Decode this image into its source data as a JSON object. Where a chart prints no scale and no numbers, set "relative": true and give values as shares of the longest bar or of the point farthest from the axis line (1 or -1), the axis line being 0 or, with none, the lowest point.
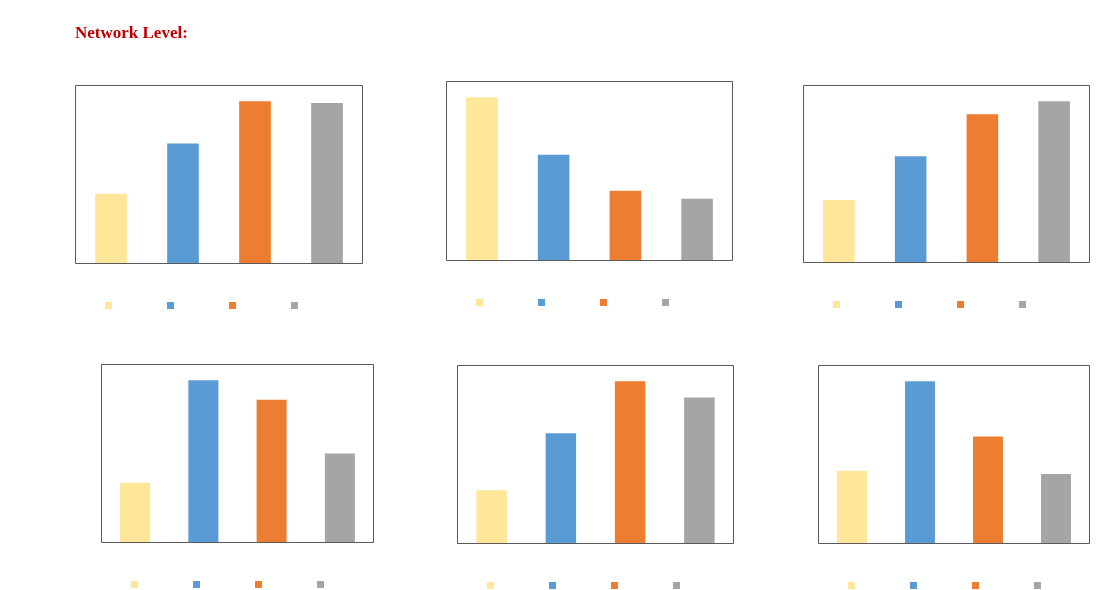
{
  "chart_data": [
    {
      "type": "bar",
      "title": "Network Level:",
      "relative": true,
      "categories": [
        null,
        null,
        null,
        null
      ],
      "values": [
        0.43,
        0.74,
        1,
        0.99
      ],
      "colors": [
        "#ffe699",
        "#5b9bd5",
        "#ed7d31",
        "#a5a5a5"
      ]
    },
    {
      "type": "bar",
      "relative": true,
      "categories": [
        null,
        null,
        null,
        null
      ],
      "values": [
        1,
        0.65,
        0.43,
        0.38
      ],
      "colors": [
        "#ffe699",
        "#5b9bd5",
        "#ed7d31",
        "#a5a5a5"
      ]
    },
    {
      "type": "bar",
      "relative": true,
      "categories": [
        null,
        null,
        null,
        null
      ],
      "values": [
        0.39,
        0.66,
        0.92,
        1
      ],
      "colors": [
        "#ffe699",
        "#5b9bd5",
        "#ed7d31",
        "#a5a5a5"
      ]
    },
    {
      "type": "bar",
      "relative": true,
      "categories": [
        null,
        null,
        null,
        null
      ],
      "values": [
        0.37,
        1,
        0.88,
        0.55
      ],
      "colors": [
        "#ffe699",
        "#5b9bd5",
        "#ed7d31",
        "#a5a5a5"
      ]
    },
    {
      "type": "bar",
      "relative": true,
      "categories": [
        null,
        null,
        null,
        null
      ],
      "values": [
        0.33,
        0.68,
        1,
        0.9
      ],
      "colors": [
        "#ffe699",
        "#5b9bd5",
        "#ed7d31",
        "#a5a5a5"
      ]
    },
    {
      "type": "bar",
      "relative": true,
      "categories": [
        null,
        null,
        null,
        null
      ],
      "values": [
        0.45,
        1,
        0.66,
        0.43
      ],
      "colors": [
        "#ffe699",
        "#5b9bd5",
        "#ed7d31",
        "#a5a5a5"
      ]
    }
  ]
}
